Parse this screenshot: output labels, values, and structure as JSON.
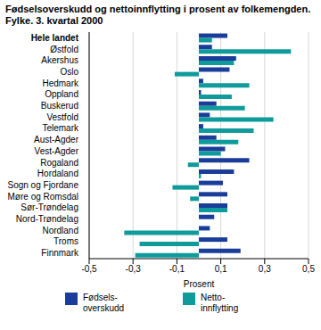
{
  "chart_data": {
    "type": "bar",
    "orientation": "horizontal",
    "title": "Fødselsoverskudd og nettoinnflytting i prosent av folkemengden. Fylke.  3. kvartal 2000",
    "x_label": "Prosent",
    "categories": [
      "Hele landet",
      "Østfold",
      "Akershus",
      "Oslo",
      "Hedmark",
      "Oppland",
      "Buskerud",
      "Vestfold",
      "Telemark",
      "Aust-Agder",
      "Vest-Agder",
      "Rogaland",
      "Hordaland",
      "Sogn og Fjordane",
      "Møre og Romsdal",
      "Sør-Trøndelag",
      "Nord-Trøndelag",
      "Nordland",
      "Troms",
      "Finnmark"
    ],
    "series": [
      {
        "name": "Fødsels-overskudd",
        "color": "#1a3d99",
        "values": [
          0.13,
          0.06,
          0.17,
          0.14,
          0.02,
          0.01,
          0.08,
          0.05,
          0.02,
          0.08,
          0.12,
          0.23,
          0.16,
          0.11,
          0.13,
          0.13,
          0.07,
          0.05,
          0.13,
          0.19
        ]
      },
      {
        "name": "Netto-innflytting",
        "color": "#0f9b9b",
        "values": [
          0.06,
          0.42,
          0.16,
          -0.11,
          0.23,
          0.15,
          0.21,
          0.34,
          0.25,
          0.18,
          0.1,
          -0.05,
          0.01,
          -0.12,
          -0.04,
          0.13,
          0,
          -0.34,
          -0.27,
          -0.29
        ]
      }
    ],
    "xlim": [
      -0.5,
      0.5
    ],
    "xticks": [
      {
        "value": -0.5,
        "label": "-0,5"
      },
      {
        "value": -0.3,
        "label": "-0,3"
      },
      {
        "value": -0.1,
        "label": "-0,1"
      },
      {
        "value": 0.1,
        "label": "0,1"
      },
      {
        "value": 0.3,
        "label": "0,3"
      },
      {
        "value": 0.5,
        "label": "0,5"
      }
    ],
    "grid": true,
    "legend": "bottom"
  }
}
